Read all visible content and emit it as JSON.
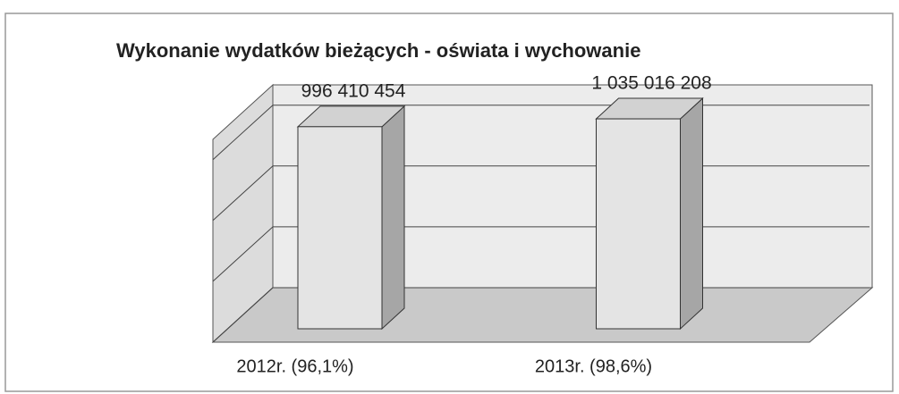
{
  "chart_data": {
    "type": "bar3d",
    "title": "Wykonanie wydatków bieżących - oświata i wychowanie",
    "categories": [
      "2012r. (96,1%)",
      "2013r. (98,6%)"
    ],
    "values": [
      996410454,
      1035016208
    ],
    "value_labels": [
      "996 410 454",
      "1 035 016 208"
    ],
    "ylim": [
      0,
      1000000000
    ],
    "yticks": [
      0,
      300000000,
      600000000,
      900000000
    ],
    "grid": true,
    "color": "#e4e4e4"
  }
}
